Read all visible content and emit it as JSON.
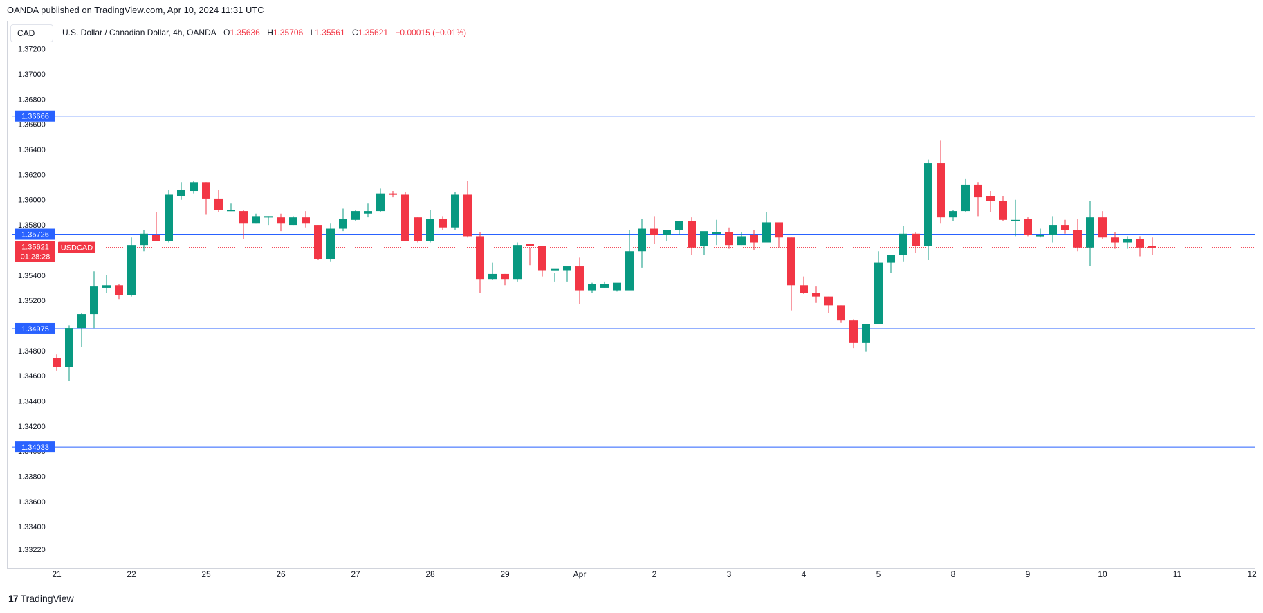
{
  "header": {
    "published": "OANDA published on TradingView.com, Apr 10, 2024 11:31 UTC"
  },
  "currency_box": "CAD",
  "legend": {
    "symbol": "U.S. Dollar / Canadian Dollar, 4h, OANDA",
    "o_label": "O",
    "o_value": "1.35636",
    "h_label": "H",
    "h_value": "1.35706",
    "l_label": "L",
    "l_value": "1.35561",
    "c_label": "C",
    "c_value": "1.35621",
    "change": "−0.00015 (−0.01%)"
  },
  "footer": {
    "brand": "TradingView",
    "logo": "17"
  },
  "colors": {
    "up": "#089981",
    "down": "#f23645",
    "line": "#2962ff",
    "grid_text": "#131722",
    "label_bg": "#2962ff"
  },
  "chart_data": {
    "type": "candlestick",
    "symbol": "USDCAD",
    "timeframe": "4h",
    "ylim": [
      1.3312,
      1.3727
    ],
    "y_ticks": [
      "1.37200",
      "1.37000",
      "1.36800",
      "1.36600",
      "1.36400",
      "1.36200",
      "1.36000",
      "1.35800",
      "1.35600",
      "1.35400",
      "1.35200",
      "1.35000",
      "1.34800",
      "1.34600",
      "1.34400",
      "1.34200",
      "1.34000",
      "1.33800",
      "1.33600",
      "1.33400",
      "1.33220"
    ],
    "x_ticks": [
      {
        "label": "21",
        "index": 0
      },
      {
        "label": "22",
        "index": 6
      },
      {
        "label": "25",
        "index": 12
      },
      {
        "label": "26",
        "index": 18
      },
      {
        "label": "27",
        "index": 24
      },
      {
        "label": "28",
        "index": 30
      },
      {
        "label": "29",
        "index": 36
      },
      {
        "label": "Apr",
        "index": 42
      },
      {
        "label": "2",
        "index": 48
      },
      {
        "label": "3",
        "index": 54
      },
      {
        "label": "4",
        "index": 60
      },
      {
        "label": "5",
        "index": 66
      },
      {
        "label": "8",
        "index": 72
      },
      {
        "label": "9",
        "index": 78
      },
      {
        "label": "10",
        "index": 84
      },
      {
        "label": "11",
        "index": 90
      },
      {
        "label": "12",
        "index": 96
      }
    ],
    "horizontal_lines": [
      {
        "value": 1.36666,
        "label": "1.36666"
      },
      {
        "value": 1.35726,
        "label": "1.35726"
      },
      {
        "value": 1.34975,
        "label": "1.34975"
      },
      {
        "value": 1.34033,
        "label": "1.34033"
      }
    ],
    "last_price": {
      "value": 1.35621,
      "label": "1.35621",
      "symbol": "USDCAD",
      "countdown": "01:28:28"
    },
    "candles": [
      [
        1.3474,
        1.3477,
        1.3464,
        1.3467
      ],
      [
        1.3467,
        1.35,
        1.3456,
        1.3498
      ],
      [
        1.3498,
        1.351,
        1.3483,
        1.3509
      ],
      [
        1.3509,
        1.3543,
        1.3498,
        1.3531
      ],
      [
        1.353,
        1.354,
        1.3526,
        1.3532
      ],
      [
        1.3532,
        1.3533,
        1.3521,
        1.3524
      ],
      [
        1.3524,
        1.357,
        1.3523,
        1.3564
      ],
      [
        1.3564,
        1.3576,
        1.3559,
        1.3573
      ],
      [
        1.3572,
        1.359,
        1.3567,
        1.3567
      ],
      [
        1.3567,
        1.3608,
        1.3566,
        1.3604
      ],
      [
        1.3603,
        1.3614,
        1.36,
        1.3608
      ],
      [
        1.3607,
        1.3615,
        1.3605,
        1.3614
      ],
      [
        1.3614,
        1.3614,
        1.3588,
        1.3601
      ],
      [
        1.3601,
        1.3608,
        1.359,
        1.3592
      ],
      [
        1.3592,
        1.3597,
        1.3591,
        1.3592
      ],
      [
        1.3591,
        1.3592,
        1.3569,
        1.3581
      ],
      [
        1.3581,
        1.3589,
        1.3581,
        1.3587
      ],
      [
        1.3586,
        1.3587,
        1.358,
        1.3587
      ],
      [
        1.3586,
        1.3589,
        1.3575,
        1.3581
      ],
      [
        1.358,
        1.3587,
        1.358,
        1.3586
      ],
      [
        1.3586,
        1.3591,
        1.3578,
        1.3581
      ],
      [
        1.358,
        1.358,
        1.3552,
        1.3553
      ],
      [
        1.3553,
        1.3581,
        1.3551,
        1.3577
      ],
      [
        1.3577,
        1.3593,
        1.3575,
        1.3585
      ],
      [
        1.3584,
        1.3592,
        1.3583,
        1.3591
      ],
      [
        1.3589,
        1.3597,
        1.3586,
        1.3591
      ],
      [
        1.3591,
        1.3609,
        1.359,
        1.3605
      ],
      [
        1.3605,
        1.3607,
        1.3602,
        1.3604
      ],
      [
        1.3604,
        1.3606,
        1.357,
        1.3567
      ],
      [
        1.3586,
        1.3586,
        1.3566,
        1.3567
      ],
      [
        1.3567,
        1.3592,
        1.3566,
        1.3585
      ],
      [
        1.3585,
        1.3587,
        1.3576,
        1.3578
      ],
      [
        1.3578,
        1.3606,
        1.3576,
        1.3604
      ],
      [
        1.3604,
        1.3615,
        1.357,
        1.3571
      ],
      [
        1.3571,
        1.3574,
        1.3526,
        1.3537
      ],
      [
        1.3537,
        1.355,
        1.3536,
        1.3541
      ],
      [
        1.3541,
        1.3541,
        1.3532,
        1.3537
      ],
      [
        1.3537,
        1.3566,
        1.3535,
        1.3564
      ],
      [
        1.3565,
        1.3562,
        1.3548,
        1.3563
      ],
      [
        1.3563,
        1.3563,
        1.3539,
        1.3544
      ],
      [
        1.3544,
        1.3542,
        1.3535,
        1.3545
      ],
      [
        1.3544,
        1.3544,
        1.3535,
        1.3547
      ],
      [
        1.3547,
        1.3554,
        1.3517,
        1.3528
      ],
      [
        1.3528,
        1.3534,
        1.3526,
        1.3533
      ],
      [
        1.353,
        1.3535,
        1.353,
        1.3533
      ],
      [
        1.3528,
        1.353,
        1.3527,
        1.3534
      ],
      [
        1.3528,
        1.3576,
        1.3528,
        1.3559
      ],
      [
        1.3559,
        1.3585,
        1.3546,
        1.3577
      ],
      [
        1.3577,
        1.3587,
        1.3565,
        1.3572
      ],
      [
        1.3572,
        1.3575,
        1.3567,
        1.3576
      ],
      [
        1.3576,
        1.3583,
        1.3572,
        1.3583
      ],
      [
        1.3583,
        1.3586,
        1.3556,
        1.3562
      ],
      [
        1.3563,
        1.3574,
        1.3556,
        1.3575
      ],
      [
        1.3574,
        1.3584,
        1.3564,
        1.3574
      ],
      [
        1.3574,
        1.3578,
        1.3561,
        1.3564
      ],
      [
        1.3564,
        1.3574,
        1.3564,
        1.3571
      ],
      [
        1.3572,
        1.3576,
        1.356,
        1.3566
      ],
      [
        1.3566,
        1.359,
        1.3566,
        1.3582
      ],
      [
        1.3582,
        1.3582,
        1.3562,
        1.357
      ],
      [
        1.357,
        1.357,
        1.3512,
        1.3532
      ],
      [
        1.3532,
        1.3539,
        1.3525,
        1.3526
      ],
      [
        1.3526,
        1.3531,
        1.3518,
        1.3523
      ],
      [
        1.3523,
        1.3523,
        1.351,
        1.3516
      ],
      [
        1.3516,
        1.3516,
        1.3502,
        1.3504
      ],
      [
        1.3504,
        1.3505,
        1.3482,
        1.3486
      ],
      [
        1.3486,
        1.35,
        1.3479,
        1.3501
      ],
      [
        1.3501,
        1.3559,
        1.3501,
        1.355
      ],
      [
        1.355,
        1.3556,
        1.3542,
        1.3556
      ],
      [
        1.3556,
        1.3579,
        1.3551,
        1.3573
      ],
      [
        1.3573,
        1.3574,
        1.3558,
        1.3563
      ],
      [
        1.3563,
        1.3632,
        1.3552,
        1.3629
      ],
      [
        1.3629,
        1.3647,
        1.3581,
        1.3586
      ],
      [
        1.3586,
        1.3592,
        1.3583,
        1.3591
      ],
      [
        1.3591,
        1.3617,
        1.359,
        1.3612
      ],
      [
        1.3612,
        1.3614,
        1.3587,
        1.3602
      ],
      [
        1.3603,
        1.3607,
        1.359,
        1.3599
      ],
      [
        1.3599,
        1.3603,
        1.3583,
        1.3584
      ],
      [
        1.3584,
        1.36,
        1.3571,
        1.3584
      ],
      [
        1.3585,
        1.3586,
        1.3571,
        1.3572
      ],
      [
        1.3572,
        1.3577,
        1.357,
        1.3572
      ],
      [
        1.3572,
        1.3587,
        1.3566,
        1.358
      ],
      [
        1.358,
        1.3584,
        1.3573,
        1.3576
      ],
      [
        1.3576,
        1.3585,
        1.3559,
        1.3562
      ],
      [
        1.3562,
        1.3599,
        1.3547,
        1.3586
      ],
      [
        1.3586,
        1.3591,
        1.3569,
        1.357
      ],
      [
        1.357,
        1.3574,
        1.3561,
        1.3566
      ],
      [
        1.3566,
        1.3571,
        1.3561,
        1.3569
      ],
      [
        1.3569,
        1.3571,
        1.3555,
        1.3562
      ],
      [
        1.3563,
        1.357,
        1.3556,
        1.3562
      ]
    ]
  }
}
